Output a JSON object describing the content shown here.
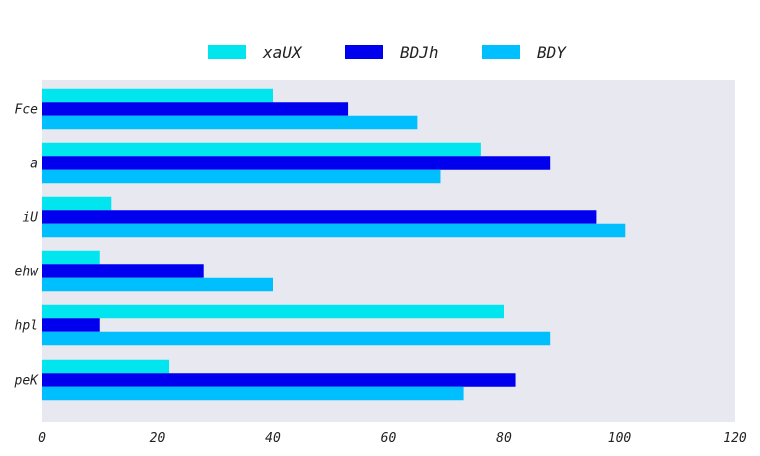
{
  "chart_data": {
    "type": "bar",
    "orientation": "horizontal",
    "categories": [
      "Fce",
      "a",
      "iU",
      "ehw",
      "hpl",
      "peK"
    ],
    "series": [
      {
        "name": "xaUX",
        "color": "#00e5ee",
        "values": [
          40,
          76,
          12,
          10,
          80,
          22
        ]
      },
      {
        "name": "BDJh",
        "color": "#0000ee",
        "values": [
          53,
          88,
          96,
          28,
          10,
          82
        ]
      },
      {
        "name": "BDY",
        "color": "#00bfff",
        "values": [
          65,
          69,
          101,
          40,
          88,
          73
        ]
      }
    ],
    "xlim": [
      0,
      120
    ],
    "xticks": [
      "0",
      "20",
      "40",
      "60",
      "80",
      "100",
      "120"
    ],
    "title": "",
    "xlabel": "",
    "ylabel": "",
    "grid": false,
    "legend_position": "top-center",
    "plot_background": "#e8e8f0"
  }
}
